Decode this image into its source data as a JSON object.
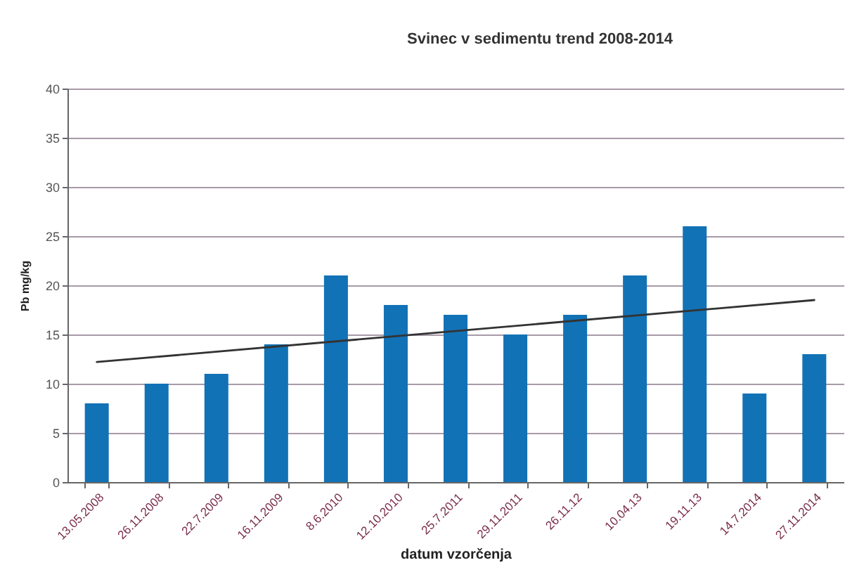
{
  "chart_data": {
    "type": "bar",
    "title": "Svinec v sedimentu trend 2008-2014",
    "xlabel": "datum vzorčenja",
    "ylabel": "Pb mg/kg",
    "categories": [
      "13.05.2008",
      "26.11.2008",
      "22.7.2009",
      "16.11.2009",
      "8.6.2010",
      "12.10.2010",
      "25.7.2011",
      "29.11.2011",
      "26.11.12",
      "10.04.13",
      "19.11.13",
      "14.7.2014",
      "27.11.2014"
    ],
    "series": [
      {
        "color": "#1272b6",
        "values": [
          8,
          10,
          11,
          14,
          21,
          18,
          17,
          15,
          17,
          21,
          26,
          9,
          13
        ]
      },
      {
        "type": "line",
        "color": "#333333",
        "x": [
          "13.05.2008",
          "27.11.2014"
        ],
        "values": [
          12.2,
          18.5
        ]
      }
    ],
    "ylim": [
      0,
      40
    ],
    "yticks": [
      0,
      5,
      10,
      15,
      20,
      25,
      30,
      35,
      40
    ],
    "grid": "y"
  }
}
